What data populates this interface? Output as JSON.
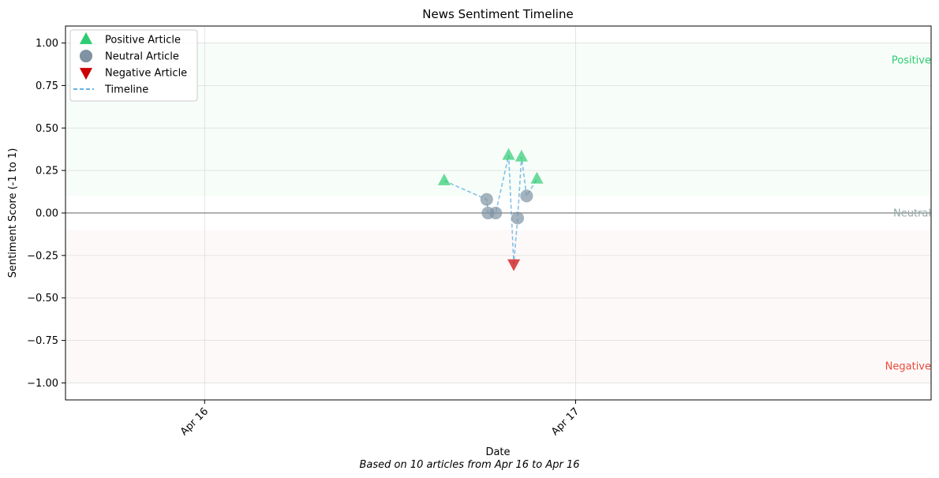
{
  "chart_data": {
    "type": "scatter",
    "title": "News Sentiment Timeline",
    "xlabel": "Date",
    "ylabel": "Sentiment Score (-1 to 1)",
    "caption": "Based on 10 articles from Apr 16 to Apr 16",
    "xlim": [
      "2025-04-15 15:00",
      "2025-04-17 23:00"
    ],
    "ylim": [
      -1.1,
      1.1
    ],
    "x_ticks": [
      {
        "value": "2025-04-16 00:00",
        "label": "Apr 16"
      },
      {
        "value": "2025-04-17 00:00",
        "label": "Apr 17"
      }
    ],
    "y_ticks": [
      {
        "value": 1.0,
        "label": "1.00"
      },
      {
        "value": 0.75,
        "label": "0.75"
      },
      {
        "value": 0.5,
        "label": "0.50"
      },
      {
        "value": 0.25,
        "label": "0.25"
      },
      {
        "value": 0.0,
        "label": "0.00"
      },
      {
        "value": -0.25,
        "label": "−0.25"
      },
      {
        "value": -0.5,
        "label": "−0.50"
      },
      {
        "value": -0.75,
        "label": "−0.75"
      },
      {
        "value": -1.0,
        "label": "−1.00"
      }
    ],
    "grid": true,
    "legend_position": "top-left",
    "zones": [
      {
        "label": "Positive",
        "color": "#2ecc71"
      },
      {
        "label": "Neutral",
        "color": "#95a5a6"
      },
      {
        "label": "Negative",
        "color": "#e74c3c"
      }
    ],
    "series": [
      {
        "name": "Positive Article",
        "marker": "triangle-up",
        "color": "#2ecc71",
        "points": [
          {
            "x": "2025-04-16 15:30",
            "y": 0.19
          },
          {
            "x": "2025-04-16 19:40",
            "y": 0.34
          },
          {
            "x": "2025-04-16 20:30",
            "y": 0.33
          },
          {
            "x": "2025-04-16 21:30",
            "y": 0.2
          }
        ]
      },
      {
        "name": "Neutral Article",
        "marker": "circle",
        "color": "#7f93a3",
        "points": [
          {
            "x": "2025-04-16 18:15",
            "y": 0.08
          },
          {
            "x": "2025-04-16 18:20",
            "y": 0.0
          },
          {
            "x": "2025-04-16 18:50",
            "y": 0.0
          },
          {
            "x": "2025-04-16 20:15",
            "y": -0.03
          },
          {
            "x": "2025-04-16 20:50",
            "y": 0.1
          }
        ]
      },
      {
        "name": "Negative Article",
        "marker": "triangle-down",
        "color": "#cc0000",
        "points": [
          {
            "x": "2025-04-16 20:00",
            "y": -0.3
          }
        ]
      },
      {
        "name": "Timeline",
        "style": "dashed",
        "color": "#3498db",
        "points": [
          {
            "x": "2025-04-16 15:30",
            "y": 0.19
          },
          {
            "x": "2025-04-16 18:15",
            "y": 0.08
          },
          {
            "x": "2025-04-16 18:20",
            "y": 0.0
          },
          {
            "x": "2025-04-16 18:50",
            "y": 0.0
          },
          {
            "x": "2025-04-16 19:40",
            "y": 0.34
          },
          {
            "x": "2025-04-16 20:00",
            "y": -0.3
          },
          {
            "x": "2025-04-16 20:15",
            "y": -0.03
          },
          {
            "x": "2025-04-16 20:30",
            "y": 0.33
          },
          {
            "x": "2025-04-16 20:50",
            "y": 0.1
          },
          {
            "x": "2025-04-16 21:30",
            "y": 0.2
          }
        ]
      }
    ]
  }
}
